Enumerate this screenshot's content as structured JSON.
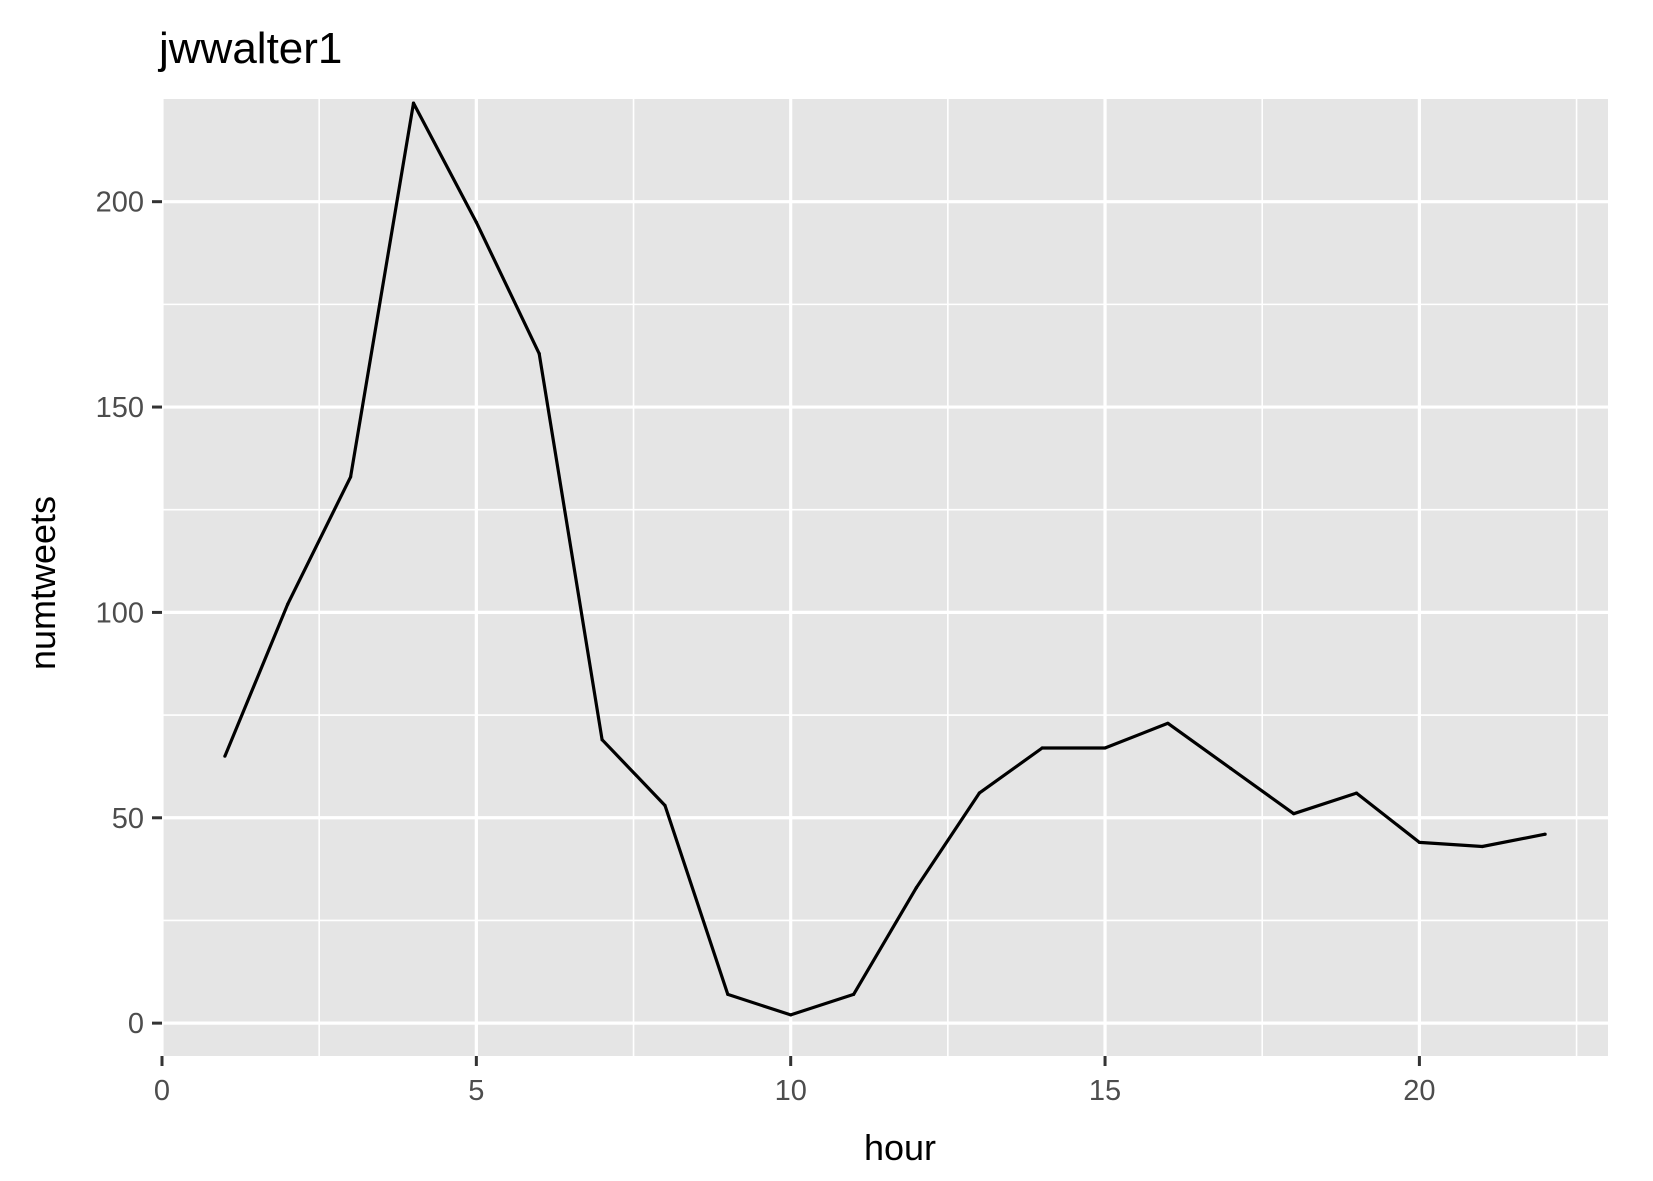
{
  "chart_data": {
    "type": "line",
    "title": "jwwalter1",
    "xlabel": "hour",
    "ylabel": "numtweets",
    "xlim": [
      0,
      23
    ],
    "ylim": [
      -8,
      225
    ],
    "x_ticks": [
      0,
      5,
      10,
      15,
      20
    ],
    "y_ticks": [
      0,
      50,
      100,
      150,
      200
    ],
    "x_minor_ticks": [
      2.5,
      7.5,
      12.5,
      17.5,
      22.5
    ],
    "y_minor_ticks": [
      25,
      75,
      125,
      175
    ],
    "grid": true,
    "legend": "none",
    "series": [
      {
        "x": [
          1,
          2,
          3,
          4,
          5,
          6,
          7,
          8,
          9,
          10,
          11,
          12,
          13,
          14,
          15,
          16,
          17,
          18,
          19,
          20,
          21,
          22
        ],
        "values": [
          65,
          102,
          133,
          224,
          195,
          163,
          69,
          53,
          7,
          2,
          7,
          33,
          56,
          67,
          67,
          73,
          62,
          51,
          56,
          44,
          43,
          46
        ]
      }
    ],
    "colors": {
      "panel": "#e5e5e5",
      "grid": "#ffffff",
      "line": "#000000",
      "tick": "#333333"
    }
  }
}
